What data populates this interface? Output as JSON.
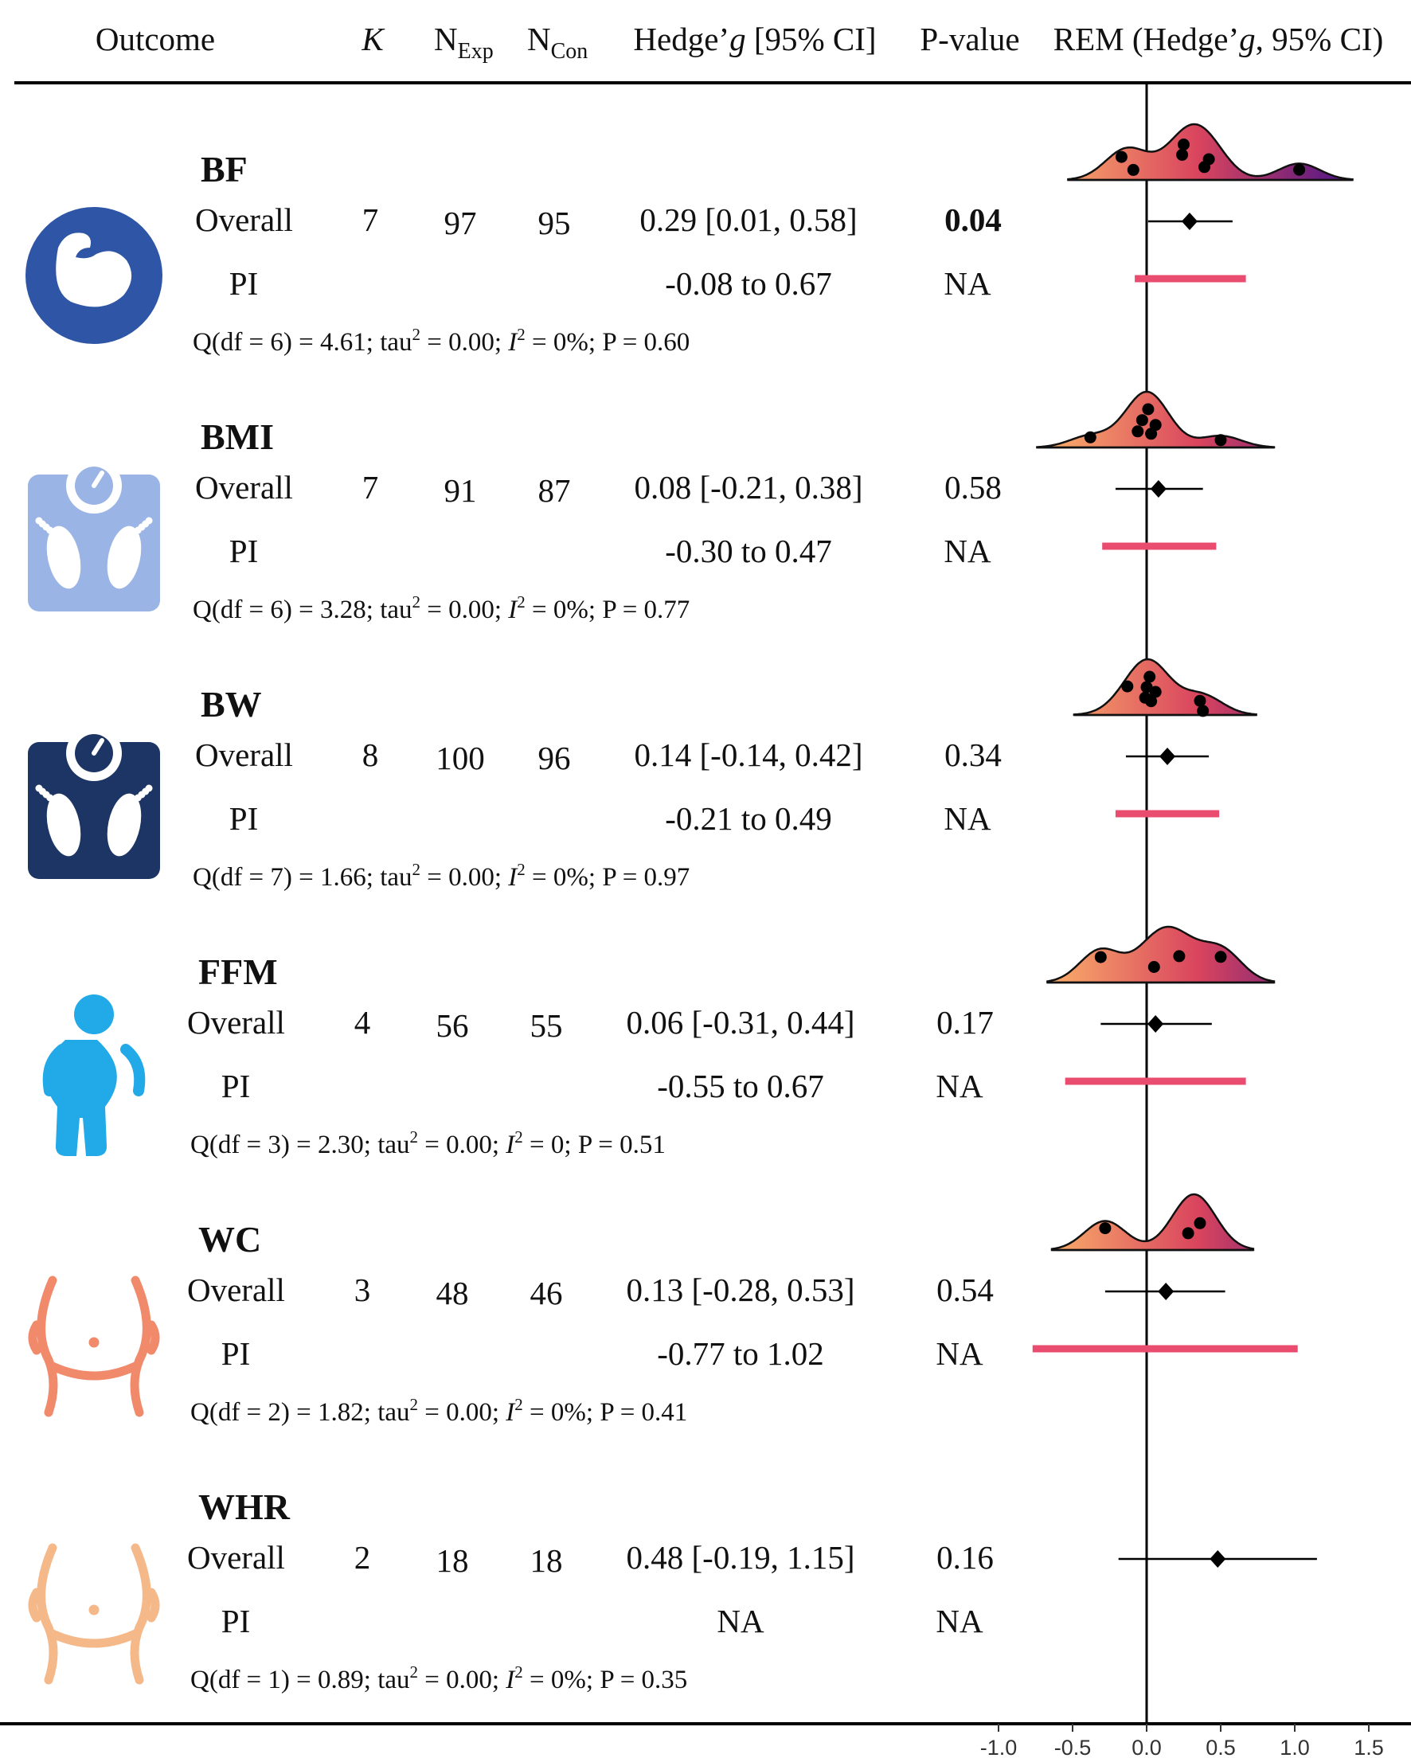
{
  "header": {
    "outcome": "Outcome",
    "k": "K",
    "n_exp_main": "N",
    "n_exp_sub": "Exp",
    "n_con_main": "N",
    "n_con_sub": "Con",
    "hedges_pre": "Hedge’",
    "hedges_g": "g",
    "hedges_post": " [95% CI]",
    "pvalue": "P-value",
    "rem_pre": "REM (Hedge’",
    "rem_g": "g",
    "rem_post": ", 95% CI)"
  },
  "icons": [
    "muscle-icon",
    "scale-icon",
    "scale-icon",
    "person-obese-icon",
    "waist-icon",
    "waist-icon"
  ],
  "colors": {
    "bf_icon": "#2f56a6",
    "bmi_icon": "#9bb4e6",
    "bw_icon": "#1c3564",
    "ffm_icon": "#22a9e8",
    "wc_icon": "#f08a6a",
    "whr_icon": "#f5b889",
    "pi_bar": "#e94c6f",
    "density_start": "#fbb26a",
    "density_mid": "#d9445e",
    "density_end": "#4a1488"
  },
  "chart_data": {
    "type": "forest",
    "xlim": [
      -1.0,
      1.5
    ],
    "x_ticks": [
      "-1.0",
      "-0.5",
      "0.0",
      "0.5",
      "1.0",
      "1.5"
    ],
    "x_tick_values": [
      -1.0,
      -0.5,
      0.0,
      0.5,
      1.0,
      1.5
    ],
    "reference_line": 0,
    "outcomes": [
      {
        "name": "BF",
        "overall_label": "Overall",
        "pi_label": "PI",
        "k": "7",
        "n_exp": "97",
        "n_con": "95",
        "est_text": "0.29 [0.01, 0.58]",
        "pi_text": "-0.08 to 0.67",
        "p_value": "0.04",
        "pi_p": "NA",
        "significant": true,
        "g": 0.29,
        "ci": [
          0.01,
          0.58
        ],
        "pi": [
          -0.08,
          0.67
        ],
        "q_pre": "Q(df = 6) = 4.61; tau",
        "q_mid": " = 0.00; ",
        "q_post": " = 0%; P = 0.60",
        "studies": [
          -0.17,
          -0.09,
          0.24,
          0.25,
          0.39,
          0.42,
          1.03
        ]
      },
      {
        "name": "BMI",
        "overall_label": "Overall",
        "pi_label": "PI",
        "k": "7",
        "n_exp": "91",
        "n_con": "87",
        "est_text": "0.08 [-0.21, 0.38]",
        "pi_text": "-0.30 to 0.47",
        "p_value": "0.58",
        "pi_p": "NA",
        "significant": false,
        "g": 0.08,
        "ci": [
          -0.21,
          0.38
        ],
        "pi": [
          -0.3,
          0.47
        ],
        "q_pre": "Q(df = 6) = 3.28; tau",
        "q_mid": " = 0.00; ",
        "q_post": " = 0%; P = 0.77",
        "studies": [
          -0.38,
          -0.06,
          -0.03,
          0.01,
          0.03,
          0.06,
          0.5
        ]
      },
      {
        "name": "BW",
        "overall_label": "Overall",
        "pi_label": "PI",
        "k": "8",
        "n_exp": "100",
        "n_con": "96",
        "est_text": "0.14 [-0.14, 0.42]",
        "pi_text": "-0.21 to 0.49",
        "p_value": "0.34",
        "pi_p": "NA",
        "significant": false,
        "g": 0.14,
        "ci": [
          -0.14,
          0.42
        ],
        "pi": [
          -0.21,
          0.49
        ],
        "q_pre": "Q(df = 7) = 1.66; tau",
        "q_mid": " = 0.00; ",
        "q_post": " = 0%; P = 0.97",
        "studies": [
          -0.13,
          -0.01,
          0.0,
          0.02,
          0.03,
          0.06,
          0.36,
          0.38
        ]
      },
      {
        "name": "FFM",
        "overall_label": "Overall",
        "pi_label": "PI",
        "k": "4",
        "n_exp": "56",
        "n_con": "55",
        "est_text": "0.06 [-0.31, 0.44]",
        "pi_text": "-0.55 to 0.67",
        "p_value": "0.17",
        "pi_p": "NA",
        "significant": false,
        "g": 0.06,
        "ci": [
          -0.31,
          0.44
        ],
        "pi": [
          -0.55,
          0.67
        ],
        "q_pre": "Q(df = 3) = 2.30; tau",
        "q_mid": " = 0.00; ",
        "q_post": " = 0; P = 0.51",
        "studies": [
          -0.31,
          0.05,
          0.22,
          0.5
        ]
      },
      {
        "name": "WC",
        "overall_label": "Overall",
        "pi_label": "PI",
        "k": "3",
        "n_exp": "48",
        "n_con": "46",
        "est_text": "0.13 [-0.28, 0.53]",
        "pi_text": "-0.77 to 1.02",
        "p_value": "0.54",
        "pi_p": "NA",
        "significant": false,
        "g": 0.13,
        "ci": [
          -0.28,
          0.53
        ],
        "pi": [
          -0.77,
          1.02
        ],
        "q_pre": "Q(df = 2) = 1.82; tau",
        "q_mid": " = 0.00; ",
        "q_post": " = 0%; P = 0.41",
        "studies": [
          -0.28,
          0.28,
          0.36
        ]
      },
      {
        "name": "WHR",
        "overall_label": "Overall",
        "pi_label": "PI",
        "k": "2",
        "n_exp": "18",
        "n_con": "18",
        "est_text": "0.48 [-0.19, 1.15]",
        "pi_text": "NA",
        "p_value": "0.16",
        "pi_p": "NA",
        "significant": false,
        "g": 0.48,
        "ci": [
          -0.19,
          1.15
        ],
        "pi": null,
        "q_pre": "Q(df = 1) = 0.89; tau",
        "q_mid": " = 0.00; ",
        "q_post": " = 0%; P = 0.35",
        "studies": []
      }
    ]
  }
}
